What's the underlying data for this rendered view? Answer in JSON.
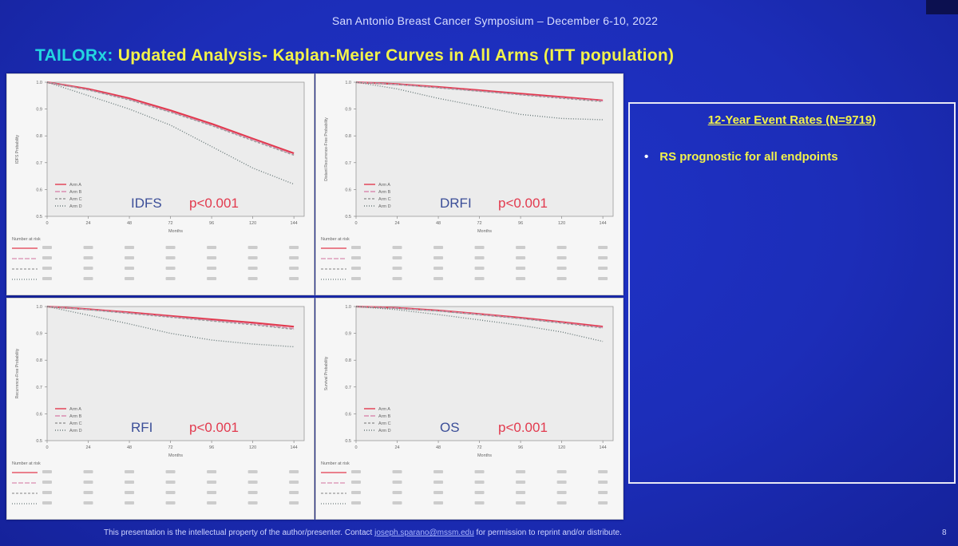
{
  "header": "San Antonio Breast Cancer Symposium – December 6-10, 2022",
  "title": {
    "trial": "TAILORx:",
    "rest": " Updated Analysis- Kaplan-Meier Curves in All Arms (ITT population)"
  },
  "events_box": {
    "title": "12-Year Event Rates (N=9719)",
    "bullet": "RS prognostic for all endpoints"
  },
  "footer": {
    "before": "This presentation is the intellectual property of the author/presenter. Contact",
    "email": "joseph.sparano@mssm.edu",
    "after": "for permission to reprint and/or distribute."
  },
  "page_number": "8",
  "colors": {
    "arm_a": "#e23a4e",
    "arm_b": "#d98cb0",
    "arm_c": "#9a9a9a",
    "arm_d": "#6b7b7b",
    "pvalue": "#e23a4e",
    "title_yellow": "#f2f24a",
    "title_cyan": "#23d6e0"
  },
  "chart_data": [
    {
      "type": "line",
      "title": "IDFS",
      "pvalue": "p<0.001",
      "xlabel": "Months",
      "ylabel": "IDFS Probability",
      "x_ticks": [
        "0",
        "24",
        "48",
        "72",
        "96",
        "120",
        "144"
      ],
      "xlim": [
        0,
        150
      ],
      "y_ticks": [
        "1.0",
        "0.9",
        "0.8",
        "0.7",
        "0.6",
        "0.5"
      ],
      "ylim": [
        0.5,
        1.0
      ],
      "legend": [
        "Arm A",
        "Arm B",
        "Arm C",
        "Arm D"
      ],
      "legend_position": "bottom-left",
      "series": [
        {
          "name": "Arm A",
          "x": [
            0,
            24,
            48,
            72,
            96,
            120,
            144
          ],
          "y": [
            1.0,
            0.975,
            0.94,
            0.895,
            0.845,
            0.79,
            0.735
          ]
        },
        {
          "name": "Arm B",
          "x": [
            0,
            24,
            48,
            72,
            96,
            120,
            144
          ],
          "y": [
            1.0,
            0.972,
            0.936,
            0.89,
            0.84,
            0.785,
            0.73
          ]
        },
        {
          "name": "Arm C",
          "x": [
            0,
            24,
            48,
            72,
            96,
            120,
            144
          ],
          "y": [
            1.0,
            0.971,
            0.934,
            0.888,
            0.838,
            0.782,
            0.728
          ]
        },
        {
          "name": "Arm D",
          "x": [
            0,
            24,
            48,
            72,
            96,
            120,
            144
          ],
          "y": [
            1.0,
            0.95,
            0.9,
            0.84,
            0.76,
            0.68,
            0.62
          ]
        }
      ],
      "risk_table": {
        "label": "Number at risk",
        "rows": []
      }
    },
    {
      "type": "line",
      "title": "DRFI",
      "pvalue": "p<0.001",
      "xlabel": "Months",
      "ylabel": "Distant Recurrence-Free Probability",
      "x_ticks": [
        "0",
        "24",
        "48",
        "72",
        "96",
        "120",
        "144"
      ],
      "xlim": [
        0,
        150
      ],
      "y_ticks": [
        "1.0",
        "0.9",
        "0.8",
        "0.7",
        "0.6",
        "0.5"
      ],
      "ylim": [
        0.5,
        1.0
      ],
      "legend": [
        "Arm A",
        "Arm B",
        "Arm C",
        "Arm D"
      ],
      "legend_position": "bottom-left",
      "series": [
        {
          "name": "Arm A",
          "x": [
            0,
            24,
            48,
            72,
            96,
            120,
            144
          ],
          "y": [
            1.0,
            0.993,
            0.982,
            0.97,
            0.957,
            0.945,
            0.932
          ]
        },
        {
          "name": "Arm B",
          "x": [
            0,
            24,
            48,
            72,
            96,
            120,
            144
          ],
          "y": [
            1.0,
            0.992,
            0.98,
            0.967,
            0.954,
            0.942,
            0.93
          ]
        },
        {
          "name": "Arm C",
          "x": [
            0,
            24,
            48,
            72,
            96,
            120,
            144
          ],
          "y": [
            1.0,
            0.991,
            0.979,
            0.966,
            0.953,
            0.94,
            0.928
          ]
        },
        {
          "name": "Arm D",
          "x": [
            0,
            24,
            48,
            72,
            96,
            120,
            144
          ],
          "y": [
            1.0,
            0.975,
            0.94,
            0.91,
            0.88,
            0.865,
            0.86
          ]
        }
      ],
      "risk_table": {
        "label": "Number at risk",
        "rows": []
      }
    },
    {
      "type": "line",
      "title": "RFI",
      "pvalue": "p<0.001",
      "xlabel": "Months",
      "ylabel": "Recurrence-Free Probability",
      "x_ticks": [
        "0",
        "24",
        "48",
        "72",
        "96",
        "120",
        "144"
      ],
      "xlim": [
        0,
        150
      ],
      "y_ticks": [
        "1.0",
        "0.9",
        "0.8",
        "0.7",
        "0.6",
        "0.5"
      ],
      "ylim": [
        0.5,
        1.0
      ],
      "legend": [
        "Arm A",
        "Arm B",
        "Arm C",
        "Arm D"
      ],
      "legend_position": "bottom-left",
      "series": [
        {
          "name": "Arm A",
          "x": [
            0,
            24,
            48,
            72,
            96,
            120,
            144
          ],
          "y": [
            1.0,
            0.99,
            0.978,
            0.965,
            0.952,
            0.94,
            0.925
          ]
        },
        {
          "name": "Arm B",
          "x": [
            0,
            24,
            48,
            72,
            96,
            120,
            144
          ],
          "y": [
            1.0,
            0.989,
            0.976,
            0.962,
            0.948,
            0.935,
            0.918
          ]
        },
        {
          "name": "Arm C",
          "x": [
            0,
            24,
            48,
            72,
            96,
            120,
            144
          ],
          "y": [
            1.0,
            0.988,
            0.974,
            0.96,
            0.946,
            0.932,
            0.915
          ]
        },
        {
          "name": "Arm D",
          "x": [
            0,
            24,
            48,
            72,
            96,
            120,
            144
          ],
          "y": [
            1.0,
            0.968,
            0.935,
            0.9,
            0.875,
            0.86,
            0.85
          ]
        }
      ],
      "risk_table": {
        "label": "Number at risk",
        "rows": []
      }
    },
    {
      "type": "line",
      "title": "OS",
      "pvalue": "p<0.001",
      "xlabel": "Months",
      "ylabel": "Survival Probability",
      "x_ticks": [
        "0",
        "24",
        "48",
        "72",
        "96",
        "120",
        "144"
      ],
      "xlim": [
        0,
        150
      ],
      "y_ticks": [
        "1.0",
        "0.9",
        "0.8",
        "0.7",
        "0.6",
        "0.5"
      ],
      "ylim": [
        0.5,
        1.0
      ],
      "legend": [
        "Arm A",
        "Arm B",
        "Arm C",
        "Arm D"
      ],
      "legend_position": "bottom-left",
      "series": [
        {
          "name": "Arm A",
          "x": [
            0,
            24,
            48,
            72,
            96,
            120,
            144
          ],
          "y": [
            1.0,
            0.995,
            0.985,
            0.972,
            0.958,
            0.942,
            0.925
          ]
        },
        {
          "name": "Arm B",
          "x": [
            0,
            24,
            48,
            72,
            96,
            120,
            144
          ],
          "y": [
            1.0,
            0.994,
            0.984,
            0.971,
            0.956,
            0.94,
            0.922
          ]
        },
        {
          "name": "Arm C",
          "x": [
            0,
            24,
            48,
            72,
            96,
            120,
            144
          ],
          "y": [
            1.0,
            0.993,
            0.983,
            0.969,
            0.955,
            0.938,
            0.92
          ]
        },
        {
          "name": "Arm D",
          "x": [
            0,
            24,
            48,
            72,
            96,
            120,
            144
          ],
          "y": [
            1.0,
            0.988,
            0.97,
            0.95,
            0.93,
            0.905,
            0.87
          ]
        }
      ],
      "risk_table": {
        "label": "Number at risk",
        "rows": []
      }
    }
  ]
}
